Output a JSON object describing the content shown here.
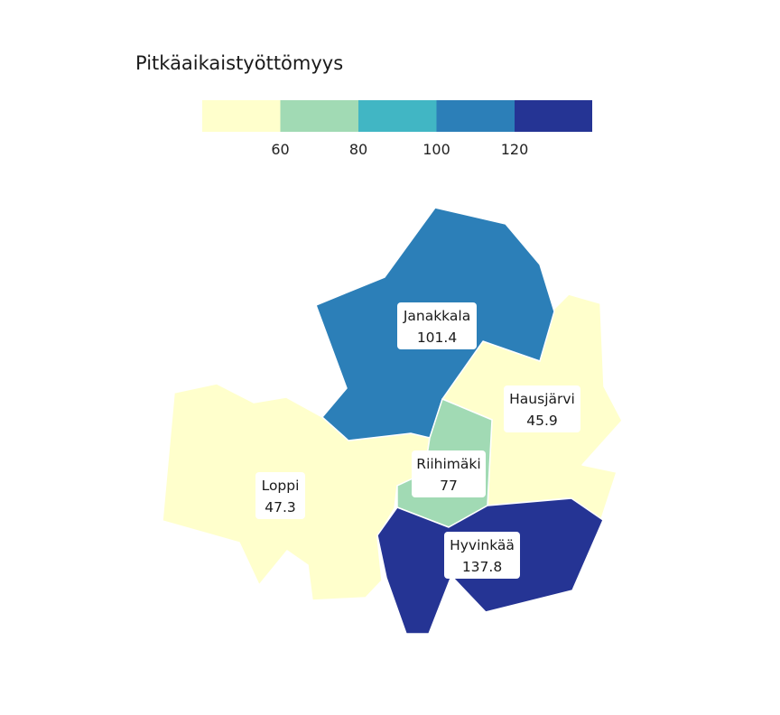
{
  "legend": {
    "title": "Pitkäaikaistyöttömyys",
    "breaks": [
      60,
      80,
      100,
      120
    ],
    "colors": [
      "#ffffcc",
      "#a1dab4",
      "#41b6c4",
      "#2c7fb8",
      "#253494"
    ]
  },
  "regions": [
    {
      "id": "janakkala",
      "name": "Janakkala",
      "value": "101.4",
      "color": "#2c7fb8"
    },
    {
      "id": "hausjarvi",
      "name": "Hausjärvi",
      "value": "45.9",
      "color": "#ffffcc"
    },
    {
      "id": "loppi",
      "name": "Loppi",
      "value": "47.3",
      "color": "#ffffcc"
    },
    {
      "id": "riihimaki",
      "name": "Riihimäki",
      "value": "77",
      "color": "#a1dab4"
    },
    {
      "id": "hyvinkaa",
      "name": "Hyvinkää",
      "value": "137.8",
      "color": "#253494"
    }
  ]
}
